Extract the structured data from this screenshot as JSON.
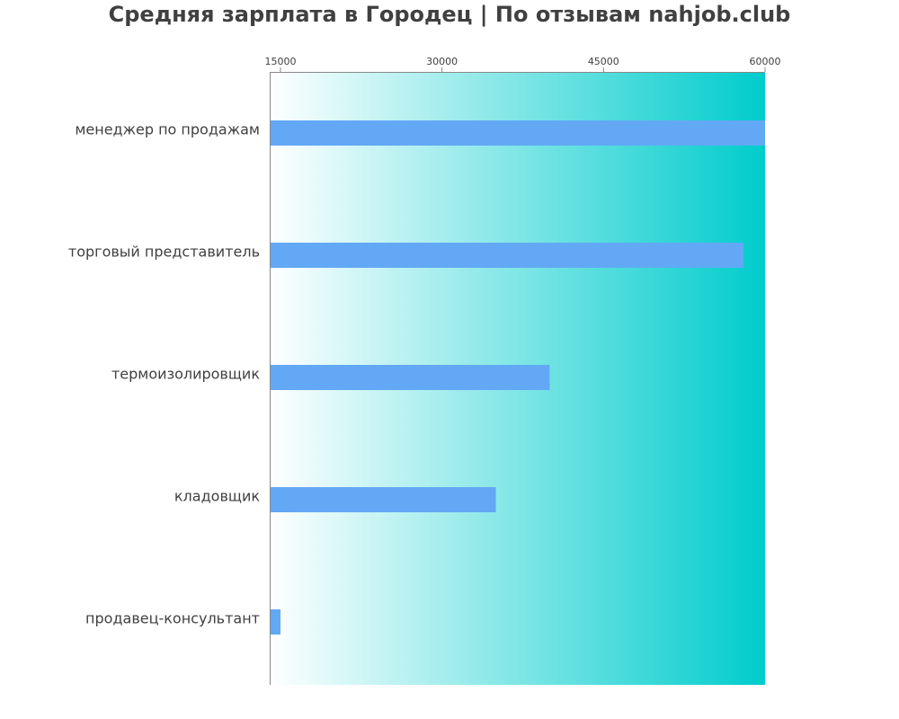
{
  "chart_data": {
    "type": "bar",
    "orientation": "horizontal",
    "title": "Средняя зарплата в Городец | По отзывам nahjob.club",
    "categories": [
      "менеджер по продажам",
      "торговый представитель",
      "термоизолировщик",
      "кладовщик",
      "продавец-консультант"
    ],
    "values": [
      60000,
      58000,
      40000,
      35000,
      15000
    ],
    "x_ticks": [
      "15000",
      "30000",
      "45000",
      "60000"
    ],
    "xlim": [
      14000,
      60000
    ],
    "x_axis_position": "top",
    "grid": false,
    "legend": "none",
    "colors": {
      "bar": "#63a8f5",
      "background_start": "#ffffff",
      "background_end": "#00cccc",
      "title": "#404040",
      "label": "#404040",
      "axis": "#888888"
    }
  }
}
